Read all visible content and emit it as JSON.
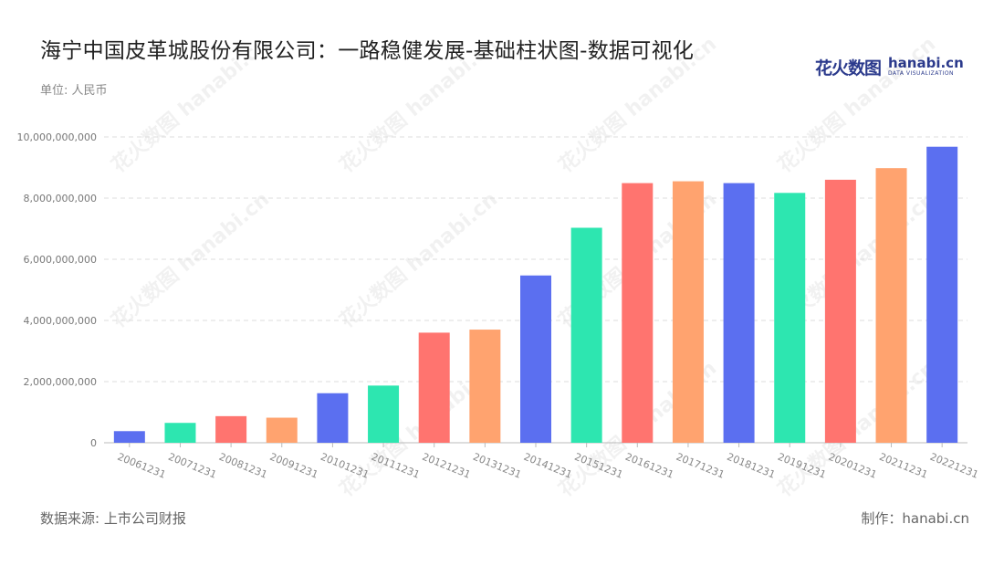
{
  "header": {
    "title": "海宁中国皮革城股份有限公司：一路稳健发展-基础柱状图-数据可视化",
    "unit": "单位: 人民币"
  },
  "logo": {
    "cn": "花火数图",
    "en": "hanabi.cn",
    "sub": "DATA VISUALIZATION"
  },
  "footer": {
    "source": "数据来源: 上市公司财报",
    "made_by": "制作：hanabi.cn"
  },
  "watermark": {
    "text": "花火数图 hanabi.cn"
  },
  "colors": {
    "palette": [
      "#5b6ff0",
      "#2de6b0",
      "#ff746f",
      "#ffa36f"
    ],
    "grid": "#dddddd",
    "axis": "#bbbbbb"
  },
  "chart_data": {
    "type": "bar",
    "title": "",
    "xlabel": "",
    "ylabel": "",
    "categories": [
      "20061231",
      "20071231",
      "20081231",
      "20091231",
      "20101231",
      "20111231",
      "20121231",
      "20131231",
      "20141231",
      "20151231",
      "20161231",
      "20171231",
      "20181231",
      "20191231",
      "20201231",
      "20211231",
      "20221231"
    ],
    "values": [
      380000000,
      650000000,
      870000000,
      820000000,
      1620000000,
      1870000000,
      3600000000,
      3700000000,
      5470000000,
      7030000000,
      8490000000,
      8550000000,
      8490000000,
      8170000000,
      8600000000,
      8980000000,
      9680000000
    ],
    "bar_colors": [
      "#5b6ff0",
      "#2de6b0",
      "#ff746f",
      "#ffa36f",
      "#5b6ff0",
      "#2de6b0",
      "#ff746f",
      "#ffa36f",
      "#5b6ff0",
      "#2de6b0",
      "#ff746f",
      "#ffa36f",
      "#5b6ff0",
      "#2de6b0",
      "#ff746f",
      "#ffa36f",
      "#5b6ff0"
    ],
    "yticks": [
      0,
      2000000000,
      4000000000,
      6000000000,
      8000000000,
      10000000000
    ],
    "ytick_labels": [
      "0",
      "2,000,000,000",
      "4,000,000,000",
      "6,000,000,000",
      "8,000,000,000",
      "10,000,000,000"
    ],
    "ylim": [
      0,
      10000000000
    ],
    "grid": true,
    "legend": "none"
  }
}
